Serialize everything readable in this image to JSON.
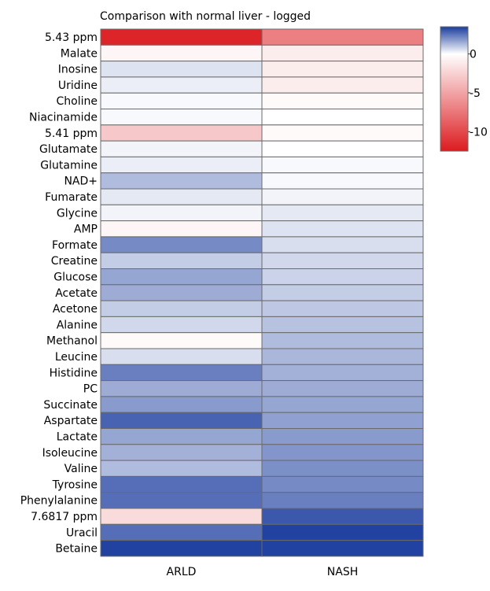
{
  "chart_data": {
    "type": "heatmap",
    "title": "Comparison with normal liver - logged",
    "columns": [
      "ARLD",
      "NASH"
    ],
    "rows": [
      "5.43 ppm",
      "Malate",
      "Inosine",
      "Uridine",
      "Choline",
      "Niacinamide",
      "5.41 ppm",
      "Glutamate",
      "Glutamine",
      "NAD+",
      "Fumarate",
      "Glycine",
      "AMP",
      "Formate",
      "Creatine",
      "Glucose",
      "Acetate",
      "Acetone",
      "Alanine",
      "Methanol",
      "Leucine",
      "Histidine",
      "PC",
      "Succinate",
      "Aspartate",
      "Lactate",
      "Isoleucine",
      "Valine",
      "Tyrosine",
      "Phenylalanine",
      "7.6817 ppm",
      "Uracil",
      "Betaine"
    ],
    "values": [
      [
        -12,
        -7
      ],
      [
        -0.5,
        -1
      ],
      [
        0.5,
        -1
      ],
      [
        0.3,
        -1
      ],
      [
        0.1,
        -0.3
      ],
      [
        0.1,
        0
      ],
      [
        -3,
        -0.3
      ],
      [
        0.2,
        0
      ],
      [
        0.3,
        0.1
      ],
      [
        1.2,
        0.1
      ],
      [
        0.4,
        0.2
      ],
      [
        0.2,
        0.4
      ],
      [
        -0.5,
        0.5
      ],
      [
        2.1,
        0.6
      ],
      [
        0.9,
        0.7
      ],
      [
        1.6,
        0.8
      ],
      [
        1.5,
        0.9
      ],
      [
        0.9,
        1.0
      ],
      [
        0.7,
        1.1
      ],
      [
        -0.3,
        1.2
      ],
      [
        0.6,
        1.3
      ],
      [
        2.3,
        1.4
      ],
      [
        1.5,
        1.5
      ],
      [
        1.8,
        1.6
      ],
      [
        2.8,
        1.7
      ],
      [
        1.6,
        1.8
      ],
      [
        1.4,
        1.9
      ],
      [
        1.2,
        2.0
      ],
      [
        2.6,
        2.1
      ],
      [
        2.6,
        2.3
      ],
      [
        -2,
        3.0
      ],
      [
        2.6,
        3.4
      ],
      [
        3.4,
        3.4
      ]
    ],
    "colorbar": {
      "min": -12.5,
      "max": 3.5,
      "ticks": [
        0,
        -5,
        -10
      ],
      "colors": {
        "low": "#dc1b1f",
        "mid": "#ffffff",
        "high": "#1a3c9e"
      }
    }
  }
}
